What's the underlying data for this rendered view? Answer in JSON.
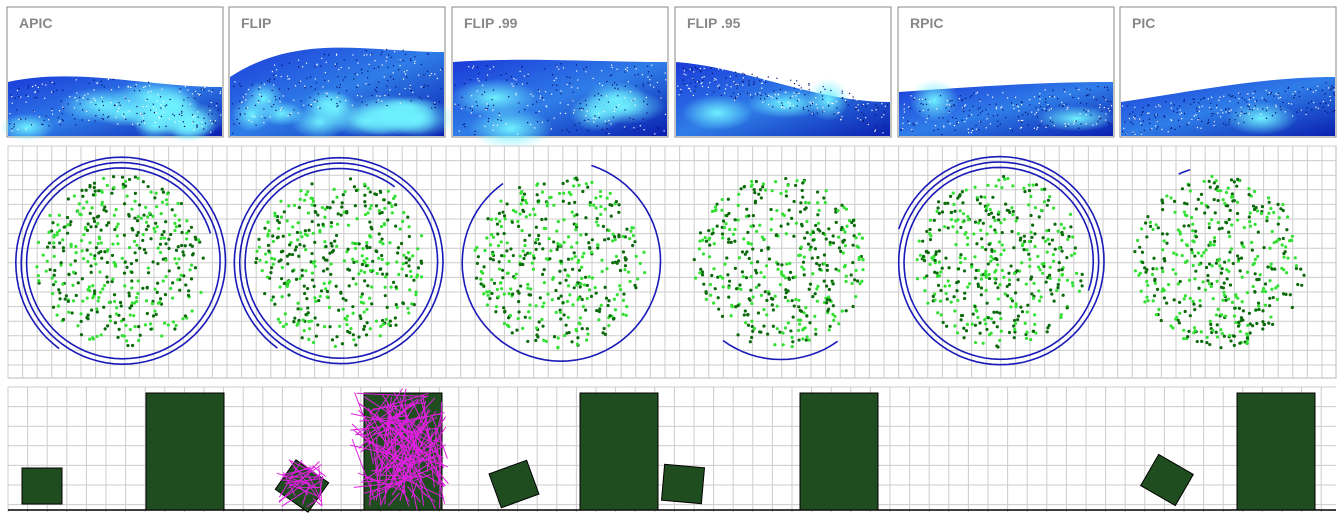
{
  "panels": [
    {
      "label": "APIC"
    },
    {
      "label": "FLIP"
    },
    {
      "label": "FLIP .99"
    },
    {
      "label": "FLIP .95"
    },
    {
      "label": "RPIC"
    },
    {
      "label": "PIC"
    }
  ]
}
